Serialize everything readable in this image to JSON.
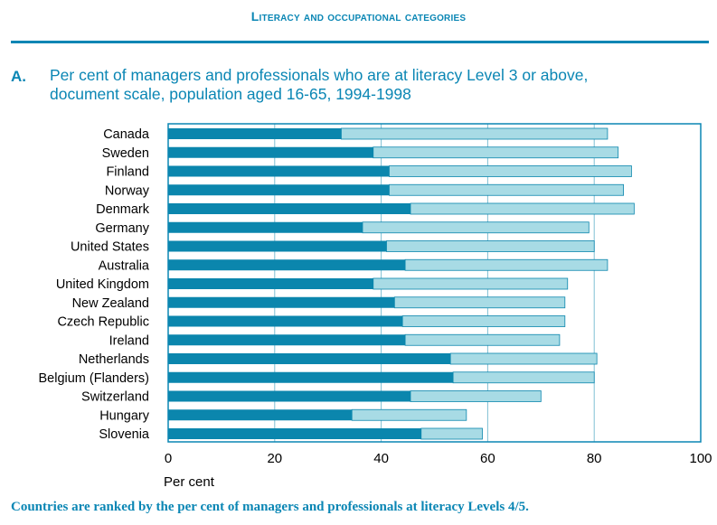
{
  "header": {
    "title": "Literacy and occupational categories"
  },
  "panel": {
    "letter": "A.",
    "title_line1": "Per cent of managers and professionals who are at literacy Level 3 or above,",
    "title_line2": "document scale, population aged 16-65, 1994-1998"
  },
  "footnote": "Countries are ranked by the per cent of managers and professionals at literacy Levels 4/5.",
  "colors": {
    "accent": "#0a86b4",
    "level45": "#0b86ad",
    "level3": "#a8dbe5",
    "grid": "#7fc0d4",
    "frame": "#0a86b4"
  },
  "chart_data": {
    "type": "bar",
    "orientation": "horizontal",
    "stacked": true,
    "categories": [
      "Canada",
      "Sweden",
      "Finland",
      "Norway",
      "Denmark",
      "Germany",
      "United States",
      "Australia",
      "United Kingdom",
      "New Zealand",
      "Czech Republic",
      "Ireland",
      "Netherlands",
      "Belgium (Flanders)",
      "Switzerland",
      "Hungary",
      "Slovenia"
    ],
    "series": [
      {
        "values": [
          32.5,
          38.5,
          41.5,
          41.5,
          45.5,
          36.5,
          41.0,
          44.5,
          38.5,
          42.5,
          44.0,
          44.5,
          53.0,
          53.5,
          45.5,
          34.5,
          47.5
        ]
      },
      {
        "values": [
          50.0,
          46.0,
          45.5,
          44.0,
          42.0,
          42.5,
          39.0,
          38.0,
          36.5,
          32.0,
          30.5,
          29.0,
          27.5,
          26.5,
          24.5,
          21.5,
          11.5
        ]
      }
    ],
    "xlabel": "Per cent",
    "xlim": [
      0,
      100
    ],
    "xticks": [
      0,
      20,
      40,
      60,
      80,
      100
    ],
    "grid": true
  }
}
